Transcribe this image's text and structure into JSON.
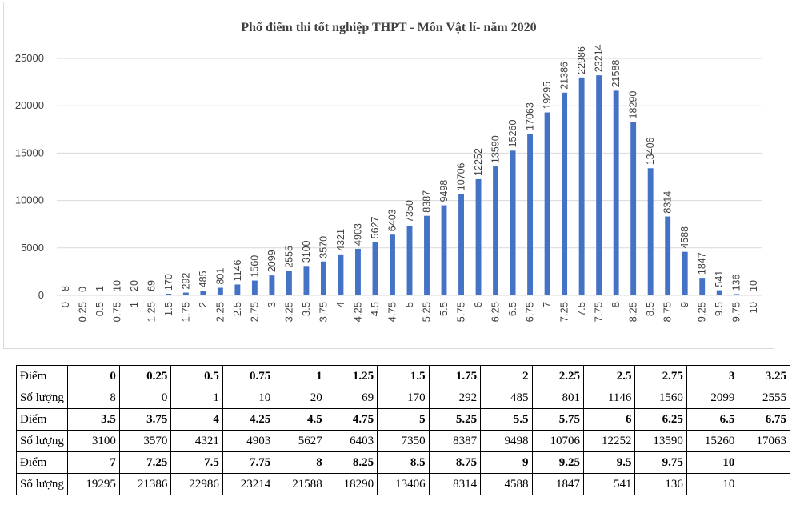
{
  "chart_data": {
    "type": "bar",
    "title": "Phổ điểm thi tốt nghiệp THPT - Môn Vật lí- năm 2020",
    "xlabel": "",
    "ylabel": "",
    "ylim": [
      0,
      25000
    ],
    "yticks": [
      "0",
      "5000",
      "10000",
      "15000",
      "20000",
      "25000"
    ],
    "grid": true,
    "bar_color": "#4472c4",
    "categories": [
      "0",
      "0.25",
      "0.5",
      "0.75",
      "1",
      "1.25",
      "1.5",
      "1.75",
      "2",
      "2.25",
      "2.5",
      "2.75",
      "3",
      "3.25",
      "3.5",
      "3.75",
      "4",
      "4.25",
      "4.5",
      "4.75",
      "5",
      "5.25",
      "5.5",
      "5.75",
      "6",
      "6.25",
      "6.5",
      "6.75",
      "7",
      "7.25",
      "7.5",
      "7.75",
      "8",
      "8.25",
      "8.5",
      "8.75",
      "9",
      "9.25",
      "9.5",
      "9.75",
      "10"
    ],
    "values": [
      8,
      0,
      1,
      10,
      20,
      69,
      170,
      292,
      485,
      801,
      1146,
      1560,
      2099,
      2555,
      3100,
      3570,
      4321,
      4903,
      5627,
      6403,
      7350,
      8387,
      9498,
      10706,
      12252,
      13590,
      15260,
      17063,
      19295,
      21386,
      22986,
      23214,
      21588,
      18290,
      13406,
      8314,
      4588,
      1847,
      541,
      136,
      10
    ]
  },
  "table": {
    "score_header": "Điểm",
    "count_header": "Số lượng",
    "groups": [
      {
        "scores": [
          "0",
          "0.25",
          "0.5",
          "0.75",
          "1",
          "1.25",
          "1.5",
          "1.75",
          "2",
          "2.25",
          "2.5",
          "2.75",
          "3",
          "3.25"
        ],
        "counts": [
          "8",
          "0",
          "1",
          "10",
          "20",
          "69",
          "170",
          "292",
          "485",
          "801",
          "1146",
          "1560",
          "2099",
          "2555"
        ]
      },
      {
        "scores": [
          "3.5",
          "3.75",
          "4",
          "4.25",
          "4.5",
          "4.75",
          "5",
          "5.25",
          "5.5",
          "5.75",
          "6",
          "6.25",
          "6.5",
          "6.75"
        ],
        "counts": [
          "3100",
          "3570",
          "4321",
          "4903",
          "5627",
          "6403",
          "7350",
          "8387",
          "9498",
          "10706",
          "12252",
          "13590",
          "15260",
          "17063"
        ]
      },
      {
        "scores": [
          "7",
          "7.25",
          "7.5",
          "7.75",
          "8",
          "8.25",
          "8.5",
          "8.75",
          "9",
          "9.25",
          "9.5",
          "9.75",
          "10",
          ""
        ],
        "counts": [
          "19295",
          "21386",
          "22986",
          "23214",
          "21588",
          "18290",
          "13406",
          "8314",
          "4588",
          "1847",
          "541",
          "136",
          "10",
          ""
        ]
      }
    ]
  }
}
